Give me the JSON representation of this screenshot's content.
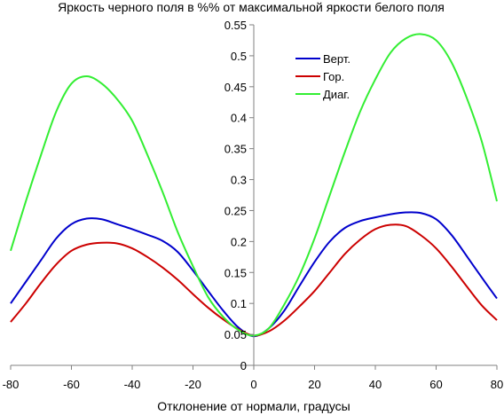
{
  "chart_data": {
    "type": "line",
    "title": "Яркость черного поля в %% от максимальной яркости белого поля",
    "xlabel": "Отклонение от нормали, градусы",
    "ylabel": "",
    "xlim": [
      -80,
      80
    ],
    "ylim": [
      0,
      0.55
    ],
    "x_ticks": [
      -80,
      -60,
      -40,
      -20,
      0,
      20,
      40,
      60,
      80
    ],
    "y_ticks": [
      0,
      0.05,
      0.1,
      0.15,
      0.2,
      0.25,
      0.3,
      0.35,
      0.4,
      0.45,
      0.5,
      0.55
    ],
    "x_tick_labels": [
      "-80",
      "-60",
      "-40",
      "-20",
      "0",
      "20",
      "40",
      "60",
      "80"
    ],
    "y_tick_labels": [
      "0",
      "0.05",
      "0.1",
      "0.15",
      "0.2",
      "0.25",
      "0.3",
      "0.35",
      "0.4",
      "0.45",
      "0.5",
      "0.55"
    ],
    "grid": false,
    "legend_position": "top-right",
    "series": [
      {
        "name": "Верт.",
        "color": "#0000cc",
        "x": [
          -80,
          -75,
          -70,
          -65,
          -60,
          -55,
          -50,
          -45,
          -40,
          -35,
          -30,
          -25,
          -20,
          -15,
          -10,
          -5,
          0,
          5,
          10,
          15,
          20,
          25,
          30,
          35,
          40,
          45,
          50,
          55,
          60,
          65,
          70,
          75,
          80
        ],
        "y": [
          0.1,
          0.135,
          0.17,
          0.205,
          0.228,
          0.237,
          0.236,
          0.228,
          0.22,
          0.211,
          0.201,
          0.183,
          0.153,
          0.12,
          0.088,
          0.061,
          0.047,
          0.06,
          0.088,
          0.128,
          0.167,
          0.2,
          0.222,
          0.233,
          0.239,
          0.244,
          0.247,
          0.246,
          0.236,
          0.211,
          0.177,
          0.142,
          0.108
        ]
      },
      {
        "name": "Гор.",
        "color": "#cc0000",
        "x": [
          -80,
          -75,
          -70,
          -65,
          -60,
          -55,
          -50,
          -45,
          -40,
          -35,
          -30,
          -25,
          -20,
          -15,
          -10,
          -5,
          0,
          5,
          10,
          15,
          20,
          25,
          30,
          35,
          40,
          45,
          50,
          55,
          60,
          65,
          70,
          75,
          80
        ],
        "y": [
          0.07,
          0.1,
          0.133,
          0.163,
          0.185,
          0.195,
          0.198,
          0.197,
          0.189,
          0.175,
          0.158,
          0.138,
          0.115,
          0.093,
          0.074,
          0.058,
          0.048,
          0.055,
          0.072,
          0.095,
          0.12,
          0.15,
          0.18,
          0.203,
          0.22,
          0.227,
          0.225,
          0.21,
          0.189,
          0.16,
          0.128,
          0.097,
          0.073
        ]
      },
      {
        "name": "Диаг.",
        "color": "#33ee33",
        "x": [
          -80,
          -75,
          -70,
          -65,
          -60,
          -55,
          -50,
          -45,
          -40,
          -35,
          -30,
          -25,
          -20,
          -15,
          -10,
          -5,
          0,
          5,
          10,
          15,
          20,
          25,
          30,
          35,
          40,
          45,
          50,
          55,
          60,
          65,
          70,
          75,
          80
        ],
        "y": [
          0.185,
          0.265,
          0.34,
          0.41,
          0.455,
          0.467,
          0.455,
          0.43,
          0.395,
          0.34,
          0.28,
          0.215,
          0.16,
          0.11,
          0.078,
          0.057,
          0.048,
          0.06,
          0.098,
          0.145,
          0.205,
          0.275,
          0.345,
          0.41,
          0.462,
          0.505,
          0.528,
          0.535,
          0.525,
          0.49,
          0.433,
          0.362,
          0.265
        ]
      }
    ]
  }
}
